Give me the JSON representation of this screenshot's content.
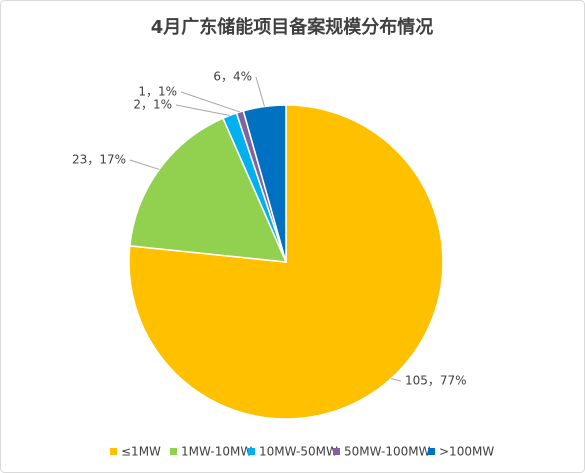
{
  "chart_data": {
    "type": "pie",
    "title": "4月广东储能项目备案规模分布情况",
    "categories": [
      "≤1MW",
      "1MW-10MW",
      "10MW-50MW",
      "50MW-100MW",
      ">100MW"
    ],
    "values": [
      105,
      23,
      2,
      1,
      6
    ],
    "value_labels": [
      "105，77%",
      "23，17%",
      "2，1%",
      "1，1%",
      "6，4%"
    ],
    "colors": [
      "#ffc000",
      "#92d050",
      "#00b0f0",
      "#8064a2",
      "#0070c0"
    ],
    "legend": "bottom"
  }
}
